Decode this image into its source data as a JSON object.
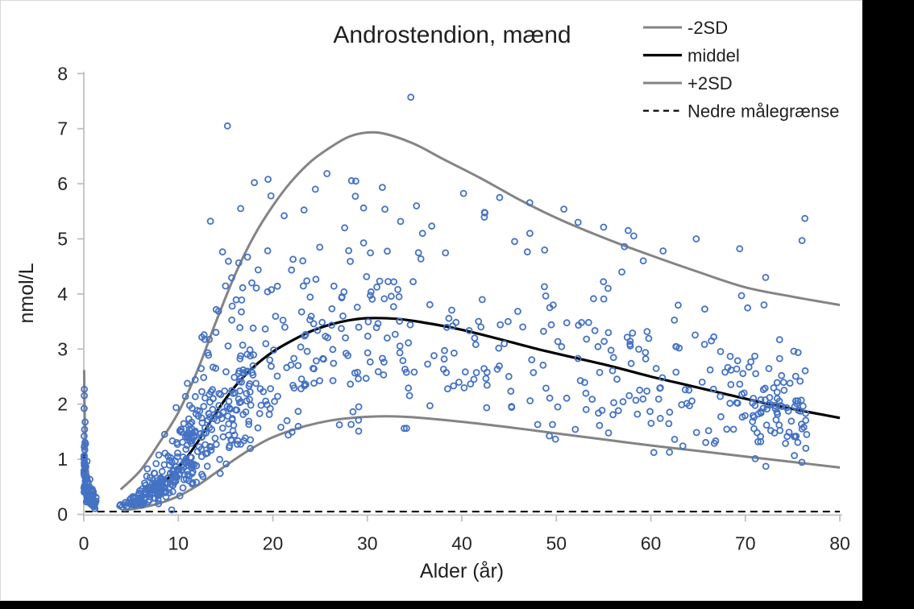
{
  "window": {
    "background": "#000000",
    "canvas_background": "#ffffff",
    "canvas_border": "#d9d9d9"
  },
  "chart_data": {
    "type": "scatter",
    "title": "Androstendion, mænd",
    "xlabel": "Alder (år)",
    "ylabel": "nmol/L",
    "xlim": [
      0,
      80
    ],
    "ylim": [
      0,
      8
    ],
    "x_ticks": [
      0,
      10,
      20,
      30,
      40,
      50,
      60,
      70,
      80
    ],
    "y_ticks": [
      0,
      1,
      2,
      3,
      4,
      5,
      6,
      7,
      8
    ],
    "grid": false,
    "legend_position": "top-right",
    "legend": [
      {
        "label": "-2SD",
        "color": "#848484",
        "dash": "",
        "width": 3
      },
      {
        "label": "middel",
        "color": "#000000",
        "dash": "",
        "width": 3.2
      },
      {
        "label": "+2SD",
        "color": "#848484",
        "dash": "",
        "width": 3
      },
      {
        "label": "Nedre målegrænse",
        "color": "#000000",
        "dash": "7 5.5",
        "width": 2.2
      }
    ],
    "colors": {
      "points": "#4472C4",
      "sd_curves": "#848484",
      "mean_curve": "#000000",
      "axis": "#BFBFBF",
      "tick_text": "#262626"
    },
    "reference_line": {
      "label": "Nedre målegrænse",
      "y": 0.05,
      "x_start": 0.15,
      "x_end": 80
    },
    "curves": {
      "infant": {
        "plus2sd": [
          [
            0.03,
            2.62
          ],
          [
            0.08,
            1.95
          ],
          [
            0.15,
            1.45
          ],
          [
            0.25,
            1.08
          ],
          [
            0.4,
            0.82
          ],
          [
            0.6,
            0.63
          ],
          [
            0.85,
            0.5
          ],
          [
            1.15,
            0.4
          ],
          [
            1.45,
            0.33
          ]
        ],
        "middel": [
          [
            0.02,
            1.08
          ],
          [
            0.07,
            0.8
          ],
          [
            0.14,
            0.62
          ],
          [
            0.25,
            0.48
          ],
          [
            0.4,
            0.38
          ],
          [
            0.6,
            0.3
          ],
          [
            0.85,
            0.25
          ],
          [
            1.15,
            0.21
          ],
          [
            1.45,
            0.18
          ]
        ],
        "minus2sd": [
          [
            0.02,
            0.44
          ],
          [
            0.08,
            0.33
          ],
          [
            0.18,
            0.26
          ],
          [
            0.35,
            0.2
          ],
          [
            0.6,
            0.15
          ],
          [
            0.9,
            0.12
          ],
          [
            1.2,
            0.1
          ],
          [
            1.45,
            0.09
          ]
        ]
      },
      "main": {
        "plus2sd": [
          [
            3.9,
            0.45
          ],
          [
            6,
            0.8
          ],
          [
            8,
            1.3
          ],
          [
            10,
            1.85
          ],
          [
            12,
            2.6
          ],
          [
            14,
            3.5
          ],
          [
            16,
            4.35
          ],
          [
            18,
            5.05
          ],
          [
            20,
            5.6
          ],
          [
            22,
            6.05
          ],
          [
            24,
            6.4
          ],
          [
            26,
            6.65
          ],
          [
            28,
            6.85
          ],
          [
            30,
            6.93
          ],
          [
            32,
            6.9
          ],
          [
            35,
            6.72
          ],
          [
            38,
            6.45
          ],
          [
            42,
            6.1
          ],
          [
            46,
            5.72
          ],
          [
            50,
            5.38
          ],
          [
            55,
            5.02
          ],
          [
            60,
            4.7
          ],
          [
            65,
            4.4
          ],
          [
            70,
            4.12
          ],
          [
            75,
            3.95
          ],
          [
            80,
            3.8
          ]
        ],
        "middel": [
          [
            4.1,
            0.16
          ],
          [
            6,
            0.3
          ],
          [
            8,
            0.52
          ],
          [
            10,
            0.85
          ],
          [
            12,
            1.3
          ],
          [
            14,
            1.85
          ],
          [
            16,
            2.32
          ],
          [
            18,
            2.68
          ],
          [
            20,
            2.95
          ],
          [
            22,
            3.15
          ],
          [
            24,
            3.32
          ],
          [
            26,
            3.44
          ],
          [
            28,
            3.52
          ],
          [
            30,
            3.56
          ],
          [
            33,
            3.55
          ],
          [
            36,
            3.48
          ],
          [
            40,
            3.35
          ],
          [
            44,
            3.18
          ],
          [
            48,
            3.0
          ],
          [
            52,
            2.84
          ],
          [
            56,
            2.68
          ],
          [
            60,
            2.5
          ],
          [
            64,
            2.34
          ],
          [
            68,
            2.18
          ],
          [
            72,
            2.02
          ],
          [
            76,
            1.88
          ],
          [
            80,
            1.75
          ]
        ],
        "minus2sd": [
          [
            4.2,
            0.07
          ],
          [
            6,
            0.12
          ],
          [
            8,
            0.2
          ],
          [
            10,
            0.33
          ],
          [
            12,
            0.52
          ],
          [
            14,
            0.76
          ],
          [
            16,
            1.0
          ],
          [
            18,
            1.22
          ],
          [
            20,
            1.4
          ],
          [
            23,
            1.58
          ],
          [
            26,
            1.7
          ],
          [
            29,
            1.76
          ],
          [
            32,
            1.78
          ],
          [
            35,
            1.76
          ],
          [
            40,
            1.68
          ],
          [
            45,
            1.58
          ],
          [
            50,
            1.47
          ],
          [
            55,
            1.36
          ],
          [
            60,
            1.25
          ],
          [
            65,
            1.15
          ],
          [
            70,
            1.05
          ],
          [
            75,
            0.95
          ],
          [
            80,
            0.85
          ]
        ]
      }
    },
    "scatter": {
      "description": "Individual male serum androstenedione measurements (open blue circles), dense infant cluster 0-1.5 yr, gap 1.5-4 yr, dense childhood band rising through puberty, wide adult spread between -2SD and +2SD curves",
      "seed": 20240717,
      "marker_radius": 3.5,
      "marker_stroke_width": 1.8,
      "clusters": [
        {
          "n": 95,
          "segment": "infant",
          "age_min": 0.02,
          "age_max": 1.3,
          "age_pow": 2.2,
          "sigma": 0.4,
          "y_min": 0.1,
          "y_max": 2.3
        },
        {
          "n": 6,
          "segment": "main",
          "age_min": 3.8,
          "age_max": 4.6,
          "age_pow": 1,
          "sigma": 0.3,
          "y_min": 0.08,
          "y_max": 0.5
        },
        {
          "n": 215,
          "segment": "main",
          "age_min": 4.5,
          "age_max": 11.5,
          "age_pow": 0.78,
          "sigma": 0.36,
          "y_min": 0.07,
          "y_max": 2.6
        },
        {
          "n": 165,
          "segment": "main",
          "age_min": 11.5,
          "age_max": 18,
          "age_pow": 1,
          "sigma": 0.37,
          "y_min": 0.15,
          "y_max": 5.6
        },
        {
          "n": 110,
          "segment": "main",
          "age_min": 18,
          "age_max": 30,
          "age_pow": 1,
          "sigma": 0.33,
          "y_min": 0.5,
          "y_max": 6.2
        },
        {
          "n": 140,
          "segment": "main",
          "age_min": 30,
          "age_max": 55,
          "age_pow": 1,
          "sigma": 0.33,
          "y_min": 0.8,
          "y_max": 6.0
        },
        {
          "n": 95,
          "segment": "main",
          "age_min": 55,
          "age_max": 70,
          "age_pow": 1,
          "sigma": 0.33,
          "y_min": 0.6,
          "y_max": 5.3
        },
        {
          "n": 88,
          "segment": "main",
          "age_min": 70,
          "age_max": 76.5,
          "age_pow": 1,
          "sigma": 0.32,
          "y_min": 0.55,
          "y_max": 5.4
        }
      ],
      "outliers": [
        [
          0.05,
          2.27
        ],
        [
          15.2,
          7.05
        ],
        [
          34.6,
          7.57
        ],
        [
          19.5,
          6.08
        ],
        [
          19.8,
          5.78
        ],
        [
          24.5,
          5.9
        ],
        [
          29.6,
          5.56
        ],
        [
          16.6,
          5.55
        ],
        [
          13.4,
          5.32
        ],
        [
          21.2,
          5.42
        ],
        [
          35.2,
          5.6
        ],
        [
          42.4,
          5.48
        ],
        [
          44.0,
          5.75
        ],
        [
          47.2,
          5.1
        ],
        [
          50.8,
          5.54
        ],
        [
          52.3,
          5.3
        ],
        [
          57.6,
          5.15
        ],
        [
          61.3,
          4.78
        ],
        [
          64.8,
          5.0
        ],
        [
          69.4,
          4.82
        ],
        [
          76.3,
          5.37
        ],
        [
          76.0,
          4.97
        ],
        [
          33.9,
          1.56
        ],
        [
          9.3,
          0.08
        ]
      ]
    }
  }
}
